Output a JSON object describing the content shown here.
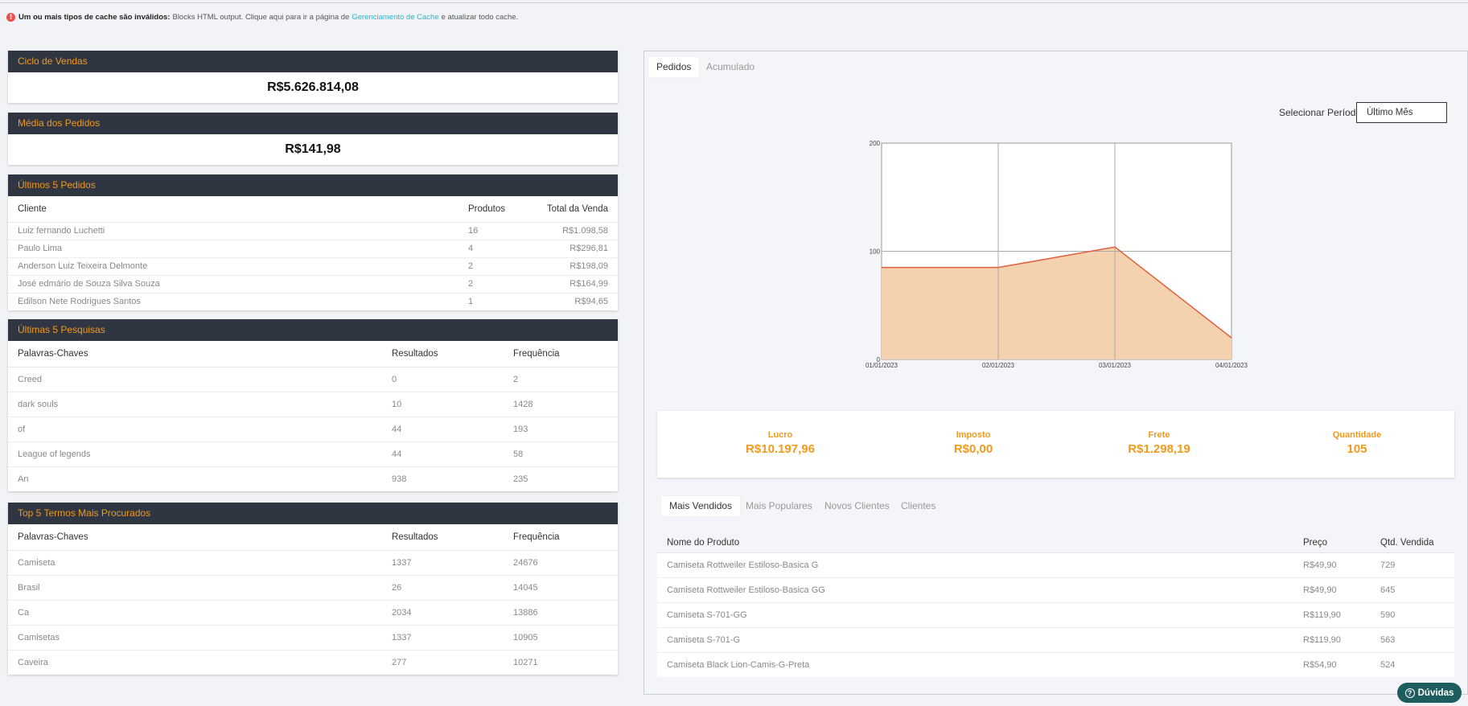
{
  "notice": {
    "icon": "error-icon",
    "bold": "Um ou mais tipos de cache são inválidos:",
    "text": "Blocks HTML output. Clique aqui para ir a página de",
    "link": "Gerenciamento de Cache",
    "tail": "e atualizar todo cache."
  },
  "ciclo": {
    "title": "Ciclo de Vendas",
    "value": "R$5.626.814,08"
  },
  "media": {
    "title": "Média dos Pedidos",
    "value": "R$141,98"
  },
  "ultimos_pedidos": {
    "title": "Últimos 5 Pedidos",
    "headers": [
      "Cliente",
      "Produtos",
      "Total da Venda"
    ],
    "rows": [
      [
        "Luiz fernando Luchetti",
        "16",
        "R$1.098,58"
      ],
      [
        "Paulo Lima",
        "4",
        "R$296,81"
      ],
      [
        "Anderson Luiz Teixeira Delmonte",
        "2",
        "R$198,09"
      ],
      [
        "José edmário de Souza Silva Souza",
        "2",
        "R$164,99"
      ],
      [
        "Edilson Nete Rodrigues Santos",
        "1",
        "R$94,65"
      ]
    ]
  },
  "ultimas_pesquisas": {
    "title": "Últimas 5 Pesquisas",
    "headers": [
      "Palavras-Chaves",
      "Resultados",
      "Frequência"
    ],
    "rows": [
      [
        "Creed",
        "0",
        "2"
      ],
      [
        "dark souls",
        "10",
        "1428"
      ],
      [
        "of",
        "44",
        "193"
      ],
      [
        "League of legends",
        "44",
        "58"
      ],
      [
        "An",
        "938",
        "235"
      ]
    ]
  },
  "top_termos": {
    "title": "Top 5 Termos Mais Procurados",
    "headers": [
      "Palavras-Chaves",
      "Resultados",
      "Frequência"
    ],
    "rows": [
      [
        "Camiseta",
        "1337",
        "24676"
      ],
      [
        "Brasil",
        "26",
        "14045"
      ],
      [
        "Ca",
        "2034",
        "13886"
      ],
      [
        "Camisetas",
        "1337",
        "10905"
      ],
      [
        "Caveira",
        "277",
        "10271"
      ]
    ]
  },
  "chart_tabs": [
    "Pedidos",
    "Acumulado"
  ],
  "period": {
    "label": "Selecionar Período:",
    "selected": "Último Mês"
  },
  "chart_data": {
    "type": "area",
    "x": [
      "01/01/2023",
      "02/01/2023",
      "03/01/2023",
      "04/01/2023"
    ],
    "values": [
      85,
      85,
      104,
      20
    ],
    "ylim": [
      0,
      200
    ],
    "yticks": [
      "0",
      "100",
      "200"
    ],
    "grid": true,
    "line_color": "#e0603a",
    "fill_color": "#f4d2b0"
  },
  "stats": [
    {
      "label": "Lucro",
      "value": "R$10.197,96"
    },
    {
      "label": "Imposto",
      "value": "R$0,00"
    },
    {
      "label": "Frete",
      "value": "R$1.298,19"
    },
    {
      "label": "Quantidade",
      "value": "105"
    }
  ],
  "product_tabs": [
    "Mais Vendidos",
    "Mais Populares",
    "Novos Clientes",
    "Clientes"
  ],
  "produtos": {
    "headers": [
      "Nome do Produto",
      "Preço",
      "Qtd. Vendida"
    ],
    "rows": [
      [
        "Camiseta Rottweiler Estiloso-Basica G",
        "R$49,90",
        "729"
      ],
      [
        "Camiseta Rottweiler Estiloso-Basica GG",
        "R$49,90",
        "645"
      ],
      [
        "Camiseta S-701-GG",
        "R$119,90",
        "590"
      ],
      [
        "Camiseta S-701-G",
        "R$119,90",
        "563"
      ],
      [
        "Camiseta Black Lion-Camis-G-Preta",
        "R$54,90",
        "524"
      ]
    ]
  },
  "help": {
    "label": "Dúvidas",
    "icon": "question-icon"
  },
  "colors": {
    "accent": "#f29a1c",
    "header_bg": "#2f3541",
    "link": "#2bb5c9"
  }
}
